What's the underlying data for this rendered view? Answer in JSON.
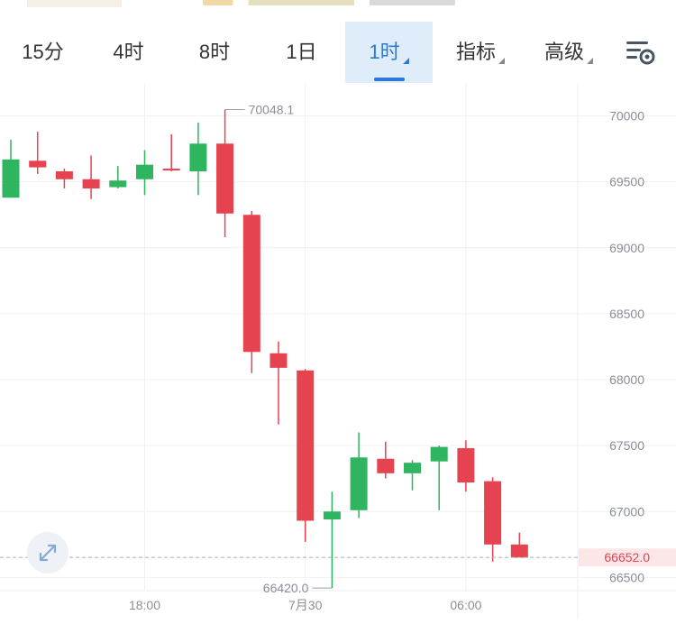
{
  "tabs": [
    {
      "label": "15分",
      "dropdown": false,
      "active": false
    },
    {
      "label": "4时",
      "dropdown": false,
      "active": false
    },
    {
      "label": "8时",
      "dropdown": false,
      "active": false
    },
    {
      "label": "1日",
      "dropdown": false,
      "active": false
    },
    {
      "label": "1时",
      "dropdown": true,
      "active": true
    },
    {
      "label": "指标",
      "dropdown": true,
      "active": false
    },
    {
      "label": "高级",
      "dropdown": true,
      "active": false
    }
  ],
  "icons": {
    "settings": "chart-settings-icon",
    "expand": "expand-arrows-icon"
  },
  "colors": {
    "up": "#2fb45f",
    "down": "#e5434f",
    "accent": "#2b7bd4",
    "current_price_bg": "#fbe6e8"
  },
  "chart_data": {
    "type": "candlestick",
    "y_axis_side": "right",
    "ylim": [
      66400,
      70250
    ],
    "y_ticks": [
      66500,
      67000,
      67500,
      68000,
      68500,
      69000,
      69500,
      70000
    ],
    "x_tick_labels": [
      "18:00",
      "7月30",
      "06:00"
    ],
    "x_tick_candle_index": [
      5,
      11,
      17
    ],
    "high_label": "70048.1",
    "low_label": "66420.0",
    "current_price": 66652.0,
    "current_price_label": "66652.0",
    "candles": [
      {
        "o": 69380,
        "h": 69820,
        "l": 69380,
        "c": 69670
      },
      {
        "o": 69660,
        "h": 69880,
        "l": 69560,
        "c": 69610
      },
      {
        "o": 69580,
        "h": 69600,
        "l": 69450,
        "c": 69520
      },
      {
        "o": 69520,
        "h": 69700,
        "l": 69370,
        "c": 69450
      },
      {
        "o": 69460,
        "h": 69620,
        "l": 69450,
        "c": 69510
      },
      {
        "o": 69520,
        "h": 69740,
        "l": 69400,
        "c": 69630
      },
      {
        "o": 69600,
        "h": 69860,
        "l": 69580,
        "c": 69590
      },
      {
        "o": 69580,
        "h": 69950,
        "l": 69400,
        "c": 69790
      },
      {
        "o": 69790,
        "h": 70048.1,
        "l": 69080,
        "c": 69260
      },
      {
        "o": 69250,
        "h": 69280,
        "l": 68050,
        "c": 68210
      },
      {
        "o": 68200,
        "h": 68290,
        "l": 67660,
        "c": 68090
      },
      {
        "o": 68070,
        "h": 68080,
        "l": 66770,
        "c": 66930
      },
      {
        "o": 66940,
        "h": 67150,
        "l": 66420.0,
        "c": 67000
      },
      {
        "o": 67010,
        "h": 67600,
        "l": 66950,
        "c": 67410
      },
      {
        "o": 67400,
        "h": 67530,
        "l": 67250,
        "c": 67290
      },
      {
        "o": 67290,
        "h": 67390,
        "l": 67160,
        "c": 67370
      },
      {
        "o": 67380,
        "h": 67500,
        "l": 67010,
        "c": 67490
      },
      {
        "o": 67480,
        "h": 67540,
        "l": 67150,
        "c": 67220
      },
      {
        "o": 67230,
        "h": 67260,
        "l": 66620,
        "c": 66750
      },
      {
        "o": 66750,
        "h": 66840,
        "l": 66650,
        "c": 66650
      }
    ]
  }
}
